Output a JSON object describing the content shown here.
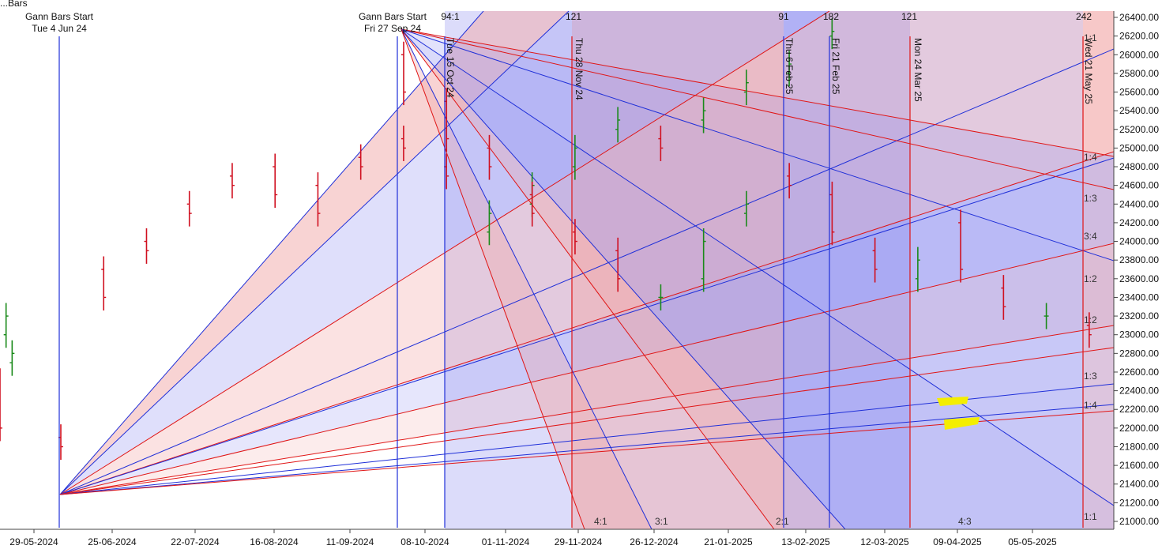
{
  "app": {
    "corner_title": "...Bars"
  },
  "chart_data": {
    "type": "ohlc-gann",
    "colors": {
      "up": "#1a8a1a",
      "down": "#d01020",
      "blue_line": "#1f2fd8",
      "red_line": "#e01515",
      "blue_fill": "#8c8cf0",
      "red_fill": "#f2a8a8",
      "highlight": "#f4ee00"
    },
    "x_tick_labels": [
      "29-05-2024",
      "25-06-2024",
      "22-07-2024",
      "16-08-2024",
      "11-09-2024",
      "08-10-2024",
      "01-11-2024",
      "29-11-2024",
      "26-12-2024",
      "21-01-2025",
      "13-02-2025",
      "12-03-2025",
      "09-04-2025",
      "05-05-2025"
    ],
    "ylim": [
      21000,
      26400
    ],
    "y_tick_labels": [
      "26400.00",
      "26200.00",
      "26000.00",
      "25800.00",
      "25600.00",
      "25400.00",
      "25200.00",
      "25000.00",
      "24800.00",
      "24600.00",
      "24400.00",
      "24200.00",
      "24000.00",
      "23800.00",
      "23600.00",
      "23400.00",
      "23200.00",
      "23000.00",
      "22800.00",
      "22600.00",
      "22400.00",
      "22200.00",
      "22000.00",
      "21800.00",
      "21600.00",
      "21400.00",
      "21200.00",
      "21000.00"
    ],
    "gann_starts": [
      {
        "title": "Gann Bars Start",
        "date": "Tue 4 Jun 24"
      },
      {
        "title": "Gann Bars Start",
        "date": "Fri 27 Sep 24"
      }
    ],
    "vertical_date_labels": [
      "Tue 15 Oct 24",
      "Thu 28 Nov 24",
      "Thu 6 Feb 25",
      "Fri 21 Feb 25",
      "Mon 24 Mar 25",
      "Wed 21 May 25"
    ],
    "top_counts": [
      "94:1",
      "121",
      "91",
      "182",
      "121",
      "242"
    ],
    "right_ratio_labels": [
      "1:1",
      "1:4",
      "1:3",
      "3:4",
      "1:2",
      "1:2",
      "1:3",
      "1:4",
      "1:1"
    ],
    "bottom_ratio_labels": [
      "4:1",
      "3:1",
      "2:1",
      "4:3"
    ],
    "fan_anchors": {
      "low": {
        "date": "Tue 4 Jun 24",
        "price": 21290
      },
      "high": {
        "date": "Fri 27 Sep 24",
        "price": 26250
      }
    },
    "price_series": {
      "segments": [
        {
          "from": "29-05-2024",
          "points": [
            [
              22500,
              22000
            ],
            [
              23000,
              23200
            ],
            [
              22700,
              22800
            ]
          ]
        },
        {
          "from": "04-06-2024",
          "points": [
            [
              21900,
              21800
            ],
            [
              23700,
              23400
            ],
            [
              24000,
              23900
            ],
            [
              24400,
              24300
            ],
            [
              24700,
              24600
            ],
            [
              24800,
              24500
            ],
            [
              24600,
              24300
            ],
            [
              24900,
              24800
            ],
            [
              25100,
              25000
            ],
            [
              24800,
              24700
            ],
            [
              24100,
              24300
            ],
            [
              24400,
              24600
            ],
            [
              24800,
              25000
            ],
            [
              25200,
              25300
            ],
            [
              25100,
              25000
            ],
            [
              25300,
              25400
            ],
            [
              25600,
              25700
            ],
            [
              25800,
              25900
            ],
            [
              26200,
              26250
            ]
          ]
        },
        {
          "from": "27-09-2024",
          "points": [
            [
              26000,
              25600
            ],
            [
              25500,
              25100
            ],
            [
              25000,
              24800
            ],
            [
              24500,
              24300
            ],
            [
              24100,
              24000
            ],
            [
              23900,
              23600
            ],
            [
              23400,
              23400
            ],
            [
              23600,
              24000
            ],
            [
              24300,
              24400
            ],
            [
              24700,
              24600
            ],
            [
              24500,
              24100
            ],
            [
              23900,
              23700
            ],
            [
              23600,
              23800
            ],
            [
              24200,
              23700
            ],
            [
              23500,
              23300
            ],
            [
              23200,
              23200
            ],
            [
              23100,
              23000
            ],
            [
              22900,
              23000
            ],
            [
              23200,
              23500
            ],
            [
              23800,
              23400
            ],
            [
              23200,
              23000
            ],
            [
              22900,
              22800
            ],
            [
              22700,
              22600
            ],
            [
              22400,
              22100
            ],
            [
              22100,
              22300
            ],
            [
              22400,
              22500
            ],
            [
              22600,
              22900
            ],
            [
              23300,
              23700
            ],
            [
              23600,
              23400
            ],
            [
              23200,
              22900
            ]
          ]
        }
      ]
    }
  }
}
